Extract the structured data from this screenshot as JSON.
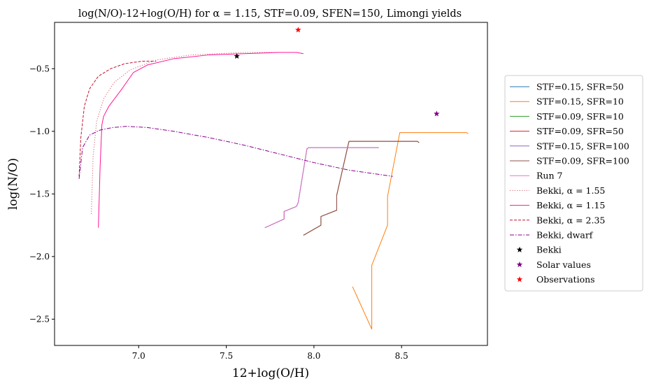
{
  "chart_data": {
    "type": "line",
    "title": "log(N/O)-12+log(O/H) for α = 1.15, STF=0.09, SFEN=150, Limongi yields",
    "xlabel": "12+log(O/H)",
    "ylabel": "log(N/O)",
    "xlim": [
      6.52,
      8.99
    ],
    "ylim": [
      -2.71,
      -0.13
    ],
    "xticks": [
      7.0,
      7.5,
      8.0,
      8.5
    ],
    "xtick_labels": [
      "7.0",
      "7.5",
      "8.0",
      "8.5"
    ],
    "yticks": [
      -0.5,
      -1.0,
      -1.5,
      -2.0,
      -2.5
    ],
    "ytick_labels": [
      "−0.5",
      "−1.0",
      "−1.5",
      "−2.0",
      "−2.5"
    ],
    "grid": false,
    "legend_position": "outside-right",
    "series": [
      {
        "name": "STF=0.15, SFR=50",
        "color": "#1f77b4",
        "style": "solid",
        "x": [
          7.72,
          7.83,
          7.83,
          7.9,
          7.91,
          7.96,
          7.97,
          8.37
        ],
        "y": [
          -1.77,
          -1.7,
          -1.64,
          -1.6,
          -1.57,
          -1.14,
          -1.13,
          -1.13
        ]
      },
      {
        "name": "STF=0.15, SFR=10",
        "color": "#ff7f0e",
        "style": "solid",
        "x": [
          8.22,
          8.33,
          8.33,
          8.42,
          8.42,
          8.49,
          8.5,
          8.87,
          8.88
        ],
        "y": [
          -2.24,
          -2.58,
          -2.07,
          -1.75,
          -1.52,
          -1.01,
          -1.01,
          -1.01,
          -1.02
        ]
      },
      {
        "name": "STF=0.09, SFR=10",
        "color": "#2ca02c",
        "style": "solid",
        "x": [
          7.94,
          8.04,
          8.04,
          8.13,
          8.13,
          8.19,
          8.2,
          8.59,
          8.6
        ],
        "y": [
          -1.83,
          -1.75,
          -1.68,
          -1.63,
          -1.51,
          -1.14,
          -1.08,
          -1.08,
          -1.09
        ]
      },
      {
        "name": "STF=0.09, SFR=50",
        "color": "#d62728",
        "style": "solid",
        "x": [
          7.94,
          8.04,
          8.04,
          8.13,
          8.13,
          8.19,
          8.2,
          8.59,
          8.6
        ],
        "y": [
          -1.83,
          -1.75,
          -1.68,
          -1.63,
          -1.51,
          -1.14,
          -1.08,
          -1.08,
          -1.09
        ]
      },
      {
        "name": "STF=0.15, SFR=100",
        "color": "#9467bd",
        "style": "solid",
        "x": [
          7.72,
          7.83,
          7.83,
          7.9,
          7.91,
          7.96,
          7.97,
          8.37
        ],
        "y": [
          -1.77,
          -1.7,
          -1.64,
          -1.6,
          -1.57,
          -1.14,
          -1.13,
          -1.13
        ]
      },
      {
        "name": "STF=0.09, SFR=100",
        "color": "#8c564b",
        "style": "solid",
        "x": [
          7.94,
          8.04,
          8.04,
          8.13,
          8.13,
          8.19,
          8.2,
          8.59,
          8.6
        ],
        "y": [
          -1.83,
          -1.75,
          -1.68,
          -1.63,
          -1.51,
          -1.14,
          -1.08,
          -1.08,
          -1.09
        ]
      },
      {
        "name": "Run 7",
        "color": "#e377c2",
        "style": "solid",
        "x": [
          7.72,
          7.83,
          7.83,
          7.9,
          7.91,
          7.96,
          7.97,
          8.37
        ],
        "y": [
          -1.77,
          -1.7,
          -1.64,
          -1.6,
          -1.57,
          -1.14,
          -1.13,
          -1.13
        ]
      },
      {
        "name": "Bekki, α = 1.55",
        "color": "#d06070",
        "style": "dotted",
        "x": [
          6.73,
          6.74,
          6.76,
          6.8,
          6.86,
          6.95,
          7.1,
          7.3,
          7.6,
          7.9
        ],
        "y": [
          -1.66,
          -1.2,
          -0.92,
          -0.74,
          -0.61,
          -0.51,
          -0.43,
          -0.39,
          -0.37,
          -0.37
        ]
      },
      {
        "name": "Bekki, α = 1.15",
        "color": "#ff1493",
        "style": "solid",
        "x": [
          6.77,
          6.78,
          6.79,
          6.8,
          6.83,
          6.9,
          6.97,
          7.05,
          7.2,
          7.4,
          7.6,
          7.8,
          7.9,
          7.94
        ],
        "y": [
          -1.77,
          -1.28,
          -0.95,
          -0.88,
          -0.8,
          -0.67,
          -0.53,
          -0.47,
          -0.42,
          -0.39,
          -0.38,
          -0.37,
          -0.37,
          -0.38
        ]
      },
      {
        "name": "Bekki, α = 2.35",
        "color": "#c8102e",
        "style": "dashed",
        "x": [
          6.66,
          6.67,
          6.69,
          6.72,
          6.77,
          6.84,
          6.92,
          7.02,
          7.1
        ],
        "y": [
          -1.36,
          -1.05,
          -0.8,
          -0.66,
          -0.56,
          -0.5,
          -0.46,
          -0.44,
          -0.44
        ]
      },
      {
        "name": "Bekki, dwarf",
        "color": "#8b008b",
        "style": "dashdot",
        "x": [
          6.66,
          6.68,
          6.72,
          6.78,
          6.85,
          6.93,
          7.05,
          7.2,
          7.4,
          7.6,
          7.8,
          8.0,
          8.2,
          8.45
        ],
        "y": [
          -1.38,
          -1.13,
          -1.03,
          -0.99,
          -0.97,
          -0.96,
          -0.97,
          -1.0,
          -1.05,
          -1.11,
          -1.18,
          -1.25,
          -1.31,
          -1.36
        ]
      }
    ],
    "points": [
      {
        "name": "Bekki",
        "color": "#000000",
        "x": [
          7.56
        ],
        "y": [
          -0.4
        ]
      },
      {
        "name": "Solar values",
        "color": "#800080",
        "x": [
          8.7
        ],
        "y": [
          -0.86
        ]
      },
      {
        "name": "Observations",
        "color": "#ff0000",
        "x": [
          7.91
        ],
        "y": [
          -0.19
        ]
      }
    ]
  }
}
